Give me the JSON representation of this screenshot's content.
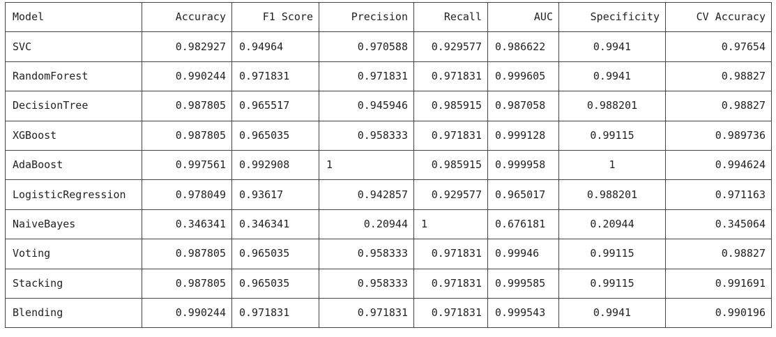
{
  "chart_data": {
    "type": "table",
    "columns": [
      "Model",
      "Accuracy",
      "F1 Score",
      "Precision",
      "Recall",
      "AUC",
      "Specificity",
      "CV Accuracy"
    ],
    "rows": [
      [
        "SVC",
        "0.982927",
        "0.94964",
        "0.970588",
        "0.929577",
        "0.986622",
        "0.9941",
        "0.97654"
      ],
      [
        "RandomForest",
        "0.990244",
        "0.971831",
        "0.971831",
        "0.971831",
        "0.999605",
        "0.9941",
        "0.98827"
      ],
      [
        "DecisionTree",
        "0.987805",
        "0.965517",
        "0.945946",
        "0.985915",
        "0.987058",
        "0.988201",
        "0.98827"
      ],
      [
        "XGBoost",
        "0.987805",
        "0.965035",
        "0.958333",
        "0.971831",
        "0.999128",
        "0.99115",
        "0.989736"
      ],
      [
        "AdaBoost",
        "0.997561",
        "0.992908",
        "1",
        "0.985915",
        "0.999958",
        "1",
        "0.994624"
      ],
      [
        "LogisticRegression",
        "0.978049",
        "0.93617",
        "0.942857",
        "0.929577",
        "0.965017",
        "0.988201",
        "0.971163"
      ],
      [
        "NaiveBayes",
        "0.346341",
        "0.346341",
        "0.20944",
        "1",
        "0.676181",
        "0.20944",
        "0.345064"
      ],
      [
        "Voting",
        "0.987805",
        "0.965035",
        "0.958333",
        "0.971831",
        "0.99946",
        "0.99115",
        "0.98827"
      ],
      [
        "Stacking",
        "0.987805",
        "0.965035",
        "0.958333",
        "0.971831",
        "0.999585",
        "0.99115",
        "0.991691"
      ],
      [
        "Blending",
        "0.990244",
        "0.971831",
        "0.971831",
        "0.971831",
        "0.999543",
        "0.9941",
        "0.990196"
      ]
    ]
  }
}
